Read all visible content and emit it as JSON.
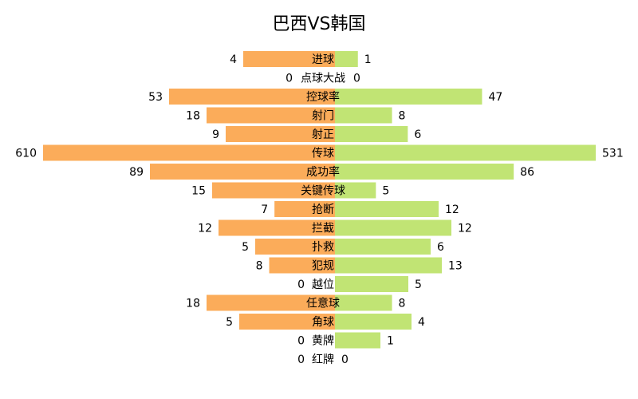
{
  "chart_data": {
    "type": "bar",
    "orientation": "horizontal-diverging",
    "title": "巴西VS韩国",
    "categories": [
      "进球",
      "点球大战",
      "控球率",
      "射门",
      "射正",
      "传球",
      "成功率",
      "关键传球",
      "抢断",
      "拦截",
      "扑救",
      "犯规",
      "越位",
      "任意球",
      "角球",
      "黄牌",
      "红牌"
    ],
    "series": [
      {
        "color": "#fbac5a",
        "side": "left",
        "values": [
          4,
          0,
          53,
          18,
          9,
          610,
          89,
          15,
          7,
          12,
          5,
          8,
          0,
          18,
          5,
          0,
          0
        ],
        "display_values": [
          "4",
          "0",
          "53",
          "18",
          "9",
          "610",
          "89",
          "15",
          "7",
          "12",
          "5",
          "8",
          "0",
          "18",
          "5",
          "0",
          "0"
        ]
      },
      {
        "color": "#c1e474",
        "side": "right",
        "values": [
          1,
          0,
          47,
          8,
          6,
          531,
          86,
          5,
          12,
          12,
          6,
          13,
          5,
          8,
          4,
          1,
          0
        ],
        "display_values": [
          "1",
          "0",
          "47",
          "8",
          "6",
          "531",
          "86",
          "5",
          "12",
          "12",
          "6",
          "13",
          "5",
          "8",
          "4",
          "1",
          "0"
        ]
      }
    ],
    "grid": false,
    "legend": "none"
  }
}
